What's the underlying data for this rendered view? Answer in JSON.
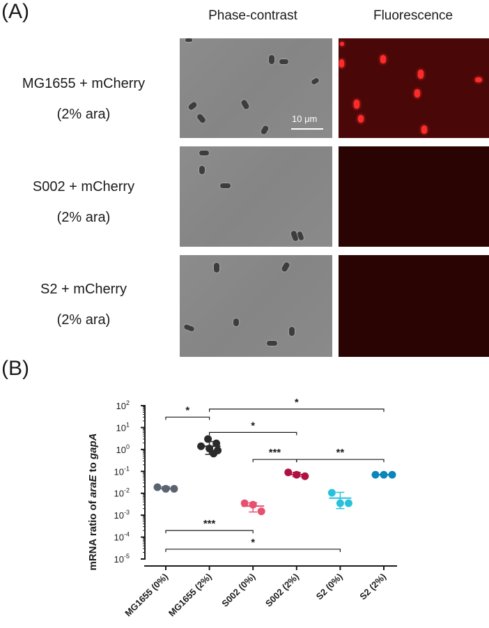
{
  "panel_a": {
    "letter": "(A)",
    "columns": [
      "Phase-contrast",
      "Fluorescence"
    ],
    "rows": [
      {
        "strain": "MG1655 + mCherry",
        "condition": "(2% ara)"
      },
      {
        "strain": "S002 + mCherry",
        "condition": "(2% ara)"
      },
      {
        "strain": "S2 + mCherry",
        "condition": "(2% ara)"
      }
    ],
    "scale_bar": "10 μm"
  },
  "panel_b": {
    "letter": "(B)"
  },
  "chart_data": {
    "type": "scatter",
    "ylabel_parts": [
      {
        "text": "mRNA ratio of ",
        "italic": false
      },
      {
        "text": "araE",
        "italic": true
      },
      {
        "text": " to ",
        "italic": false
      },
      {
        "text": "gapA",
        "italic": true
      }
    ],
    "y_scale": "log",
    "ylim": [
      1e-05,
      100
    ],
    "y_ticks": [
      {
        "value": 100,
        "base": "10",
        "exp": "2"
      },
      {
        "value": 10,
        "base": "10",
        "exp": "1"
      },
      {
        "value": 1,
        "base": "10",
        "exp": "0"
      },
      {
        "value": 0.1,
        "base": "10",
        "exp": "-1"
      },
      {
        "value": 0.01,
        "base": "10",
        "exp": "-2"
      },
      {
        "value": 0.001,
        "base": "10",
        "exp": "-3"
      },
      {
        "value": 0.0001,
        "base": "10",
        "exp": "-4"
      },
      {
        "value": 1e-05,
        "base": "10",
        "exp": "-5"
      }
    ],
    "categories": [
      "MG1655 (0%)",
      "MG1655 (2%)",
      "S002 (0%)",
      "S002 (2%)",
      "S2 (0%)",
      "S2 (2%)"
    ],
    "series": [
      {
        "color": "#5a6470",
        "points": [
          0.019,
          0.016,
          0.016
        ],
        "mean": 0.017,
        "sd": [
          0.015,
          0.02
        ]
      },
      {
        "color": "#2a2a2a",
        "points": [
          3.0,
          1.9,
          1.4,
          1.1,
          0.9,
          0.65
        ],
        "mean": 1.4,
        "sd": [
          0.6,
          2.3
        ]
      },
      {
        "color": "#e8506f",
        "points": [
          0.0035,
          0.003,
          0.0015
        ],
        "mean": 0.0026,
        "sd": [
          0.0014,
          0.0037
        ]
      },
      {
        "color": "#b0123f",
        "points": [
          0.09,
          0.07,
          0.06
        ],
        "mean": 0.072,
        "sd": [
          0.058,
          0.09
        ]
      },
      {
        "color": "#28c0dc",
        "points": [
          0.0105,
          0.0035,
          0.0035
        ],
        "mean": 0.006,
        "sd": [
          0.002,
          0.011
        ]
      },
      {
        "color": "#0a86b8",
        "points": [
          0.07,
          0.07,
          0.07
        ],
        "mean": 0.07,
        "sd": [
          0.068,
          0.072
        ]
      }
    ],
    "significance": [
      {
        "from": 0,
        "to": 1,
        "y": 30,
        "label": "*"
      },
      {
        "from": 1,
        "to": 5,
        "y": 70,
        "label": "*"
      },
      {
        "from": 1,
        "to": 3,
        "y": 6,
        "label": "*"
      },
      {
        "from": 2,
        "to": 3,
        "y": 0.35,
        "label": "***"
      },
      {
        "from": 3,
        "to": 5,
        "y": 0.35,
        "label": "**"
      },
      {
        "from": 0,
        "to": 2,
        "y": 0.0002,
        "label": "***"
      },
      {
        "from": 0,
        "to": 4,
        "y": 2.8e-05,
        "label": "*"
      }
    ]
  }
}
